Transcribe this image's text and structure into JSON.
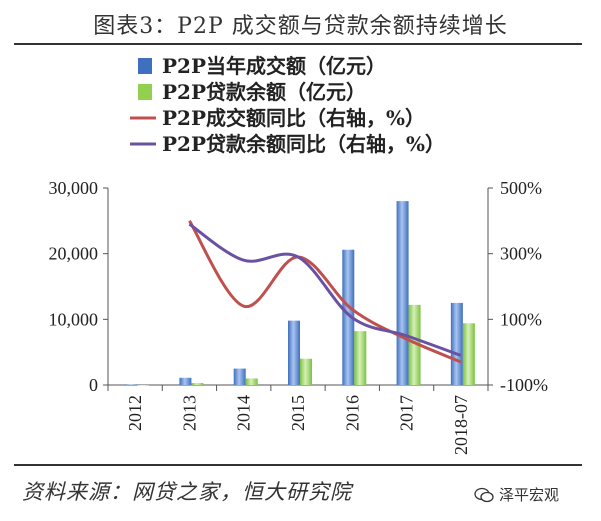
{
  "figure": {
    "title": "图表3：P2P 成交额与贷款余额持续增长",
    "source": "资料来源：网贷之家，恒大研究院",
    "watermark": "泽平宏观"
  },
  "colors": {
    "bar1": "#3f6fbf",
    "bar2": "#92d050",
    "line1": "#c0504d",
    "line2": "#6a52a3",
    "axis": "#555555"
  },
  "chart_data": {
    "type": "bar",
    "categories": [
      "2012",
      "2013",
      "2014",
      "2015",
      "2016",
      "2017",
      "2018-07"
    ],
    "series": [
      {
        "name": "P2P当年成交额（亿元）",
        "kind": "bar",
        "axis": "left",
        "values": [
          100,
          1100,
          2500,
          9800,
          20600,
          28000,
          12500
        ]
      },
      {
        "name": "P2P贷款余额（亿元）",
        "kind": "bar",
        "axis": "left",
        "values": [
          0,
          300,
          1000,
          4000,
          8200,
          12200,
          9400
        ]
      },
      {
        "name": "P2P成交额同比（右轴，%）",
        "kind": "line",
        "axis": "right",
        "values": [
          null,
          400,
          140,
          290,
          130,
          40,
          -30
        ]
      },
      {
        "name": "P2P贷款余额同比（右轴，%）",
        "kind": "line",
        "axis": "right",
        "values": [
          null,
          390,
          280,
          290,
          105,
          50,
          -10
        ]
      }
    ],
    "y_left": {
      "min": 0,
      "max": 30000,
      "ticks": [
        "0",
        "10,000",
        "20,000",
        "30,000"
      ]
    },
    "y_right": {
      "min": -100,
      "max": 500,
      "ticks": [
        "-100%",
        "100%",
        "300%",
        "500%"
      ]
    },
    "legend_position": "top-left",
    "grid": false
  }
}
